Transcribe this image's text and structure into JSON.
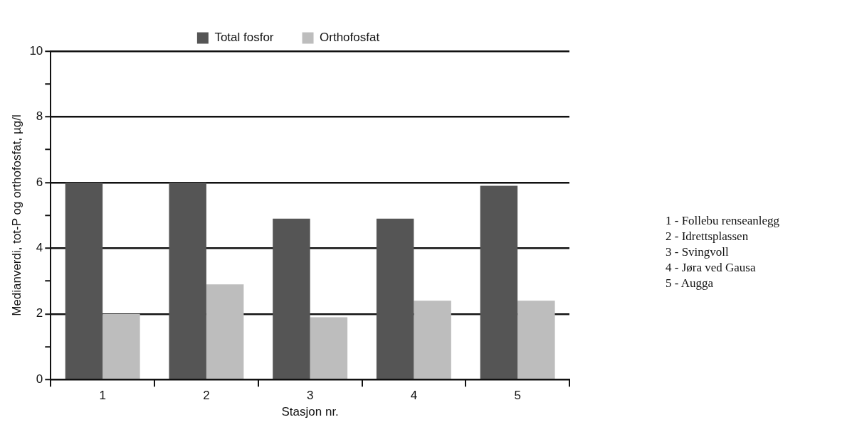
{
  "chart_data": {
    "type": "bar",
    "xlabel": "Stasjon nr.",
    "ylabel": "Medianverdi, tot-P og orthofosfat, µg/l",
    "categories": [
      "1",
      "2",
      "3",
      "4",
      "5"
    ],
    "series": [
      {
        "name": "Total fosfor",
        "color": "#555555",
        "values": [
          6,
          6,
          4.9,
          4.9,
          5.9
        ]
      },
      {
        "name": "Orthofosfat",
        "color": "#bdbdbd",
        "values": [
          2,
          2.9,
          1.9,
          2.4,
          2.4
        ]
      }
    ],
    "ylim": [
      0,
      10
    ],
    "yticks": [
      0,
      {
        "value": 1,
        "label": null
      },
      2,
      {
        "value": 3,
        "label": null
      },
      4,
      {
        "value": 5,
        "label": null
      },
      6,
      {
        "value": 7,
        "label": null
      },
      8,
      {
        "value": 9,
        "label": null
      },
      10
    ],
    "grid": "y",
    "legend": "top",
    "annotations": [
      "1 - Follebu renseanlegg",
      "2 - Idrettsplassen",
      "3 - Svingvoll",
      "4 - Jøra ved Gausa",
      "5 - Augga"
    ]
  }
}
